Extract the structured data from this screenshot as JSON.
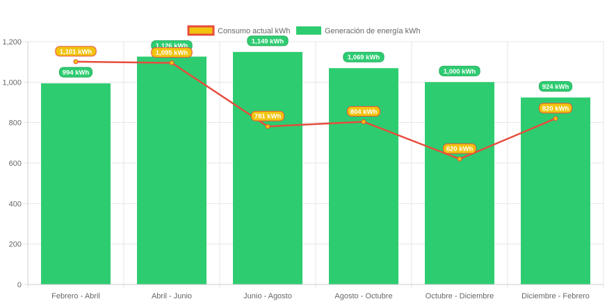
{
  "chart_data": {
    "type": "bar",
    "title": "",
    "xlabel": "",
    "ylabel": "",
    "ylim": [
      0,
      1200
    ],
    "yticks": [
      0,
      200,
      400,
      600,
      800,
      1000,
      1200
    ],
    "ytick_labels": [
      "0",
      "200",
      "400",
      "600",
      "800",
      "1,000",
      "1,200"
    ],
    "grid": true,
    "legend_position": "top-center",
    "unit": "kWh",
    "categories": [
      "Febrero - Abril",
      "Abril - Junio",
      "Junio - Agosto",
      "Agosto - Octubre",
      "Octubre - Diciembre",
      "Diciembre - Febrero"
    ],
    "series": [
      {
        "name": "Consumo actual kWh",
        "type": "line",
        "color": "#e74c3c",
        "fill": "#f1c40f",
        "values": [
          1101,
          1095,
          781,
          804,
          620,
          820
        ],
        "labels": [
          "1,101 kWh",
          "1,095 kWh",
          "781 kWh",
          "804 kWh",
          "620 kWh",
          "820 kWh"
        ]
      },
      {
        "name": "Generación de energía kWh",
        "type": "bar",
        "color": "#2ecc71",
        "values": [
          994,
          1126,
          1149,
          1069,
          1000,
          924
        ],
        "labels": [
          "994 kWh",
          "1,126 kWh",
          "1,149 kWh",
          "1,069 kWh",
          "1,000 kWh",
          "924 kWh"
        ]
      }
    ]
  }
}
